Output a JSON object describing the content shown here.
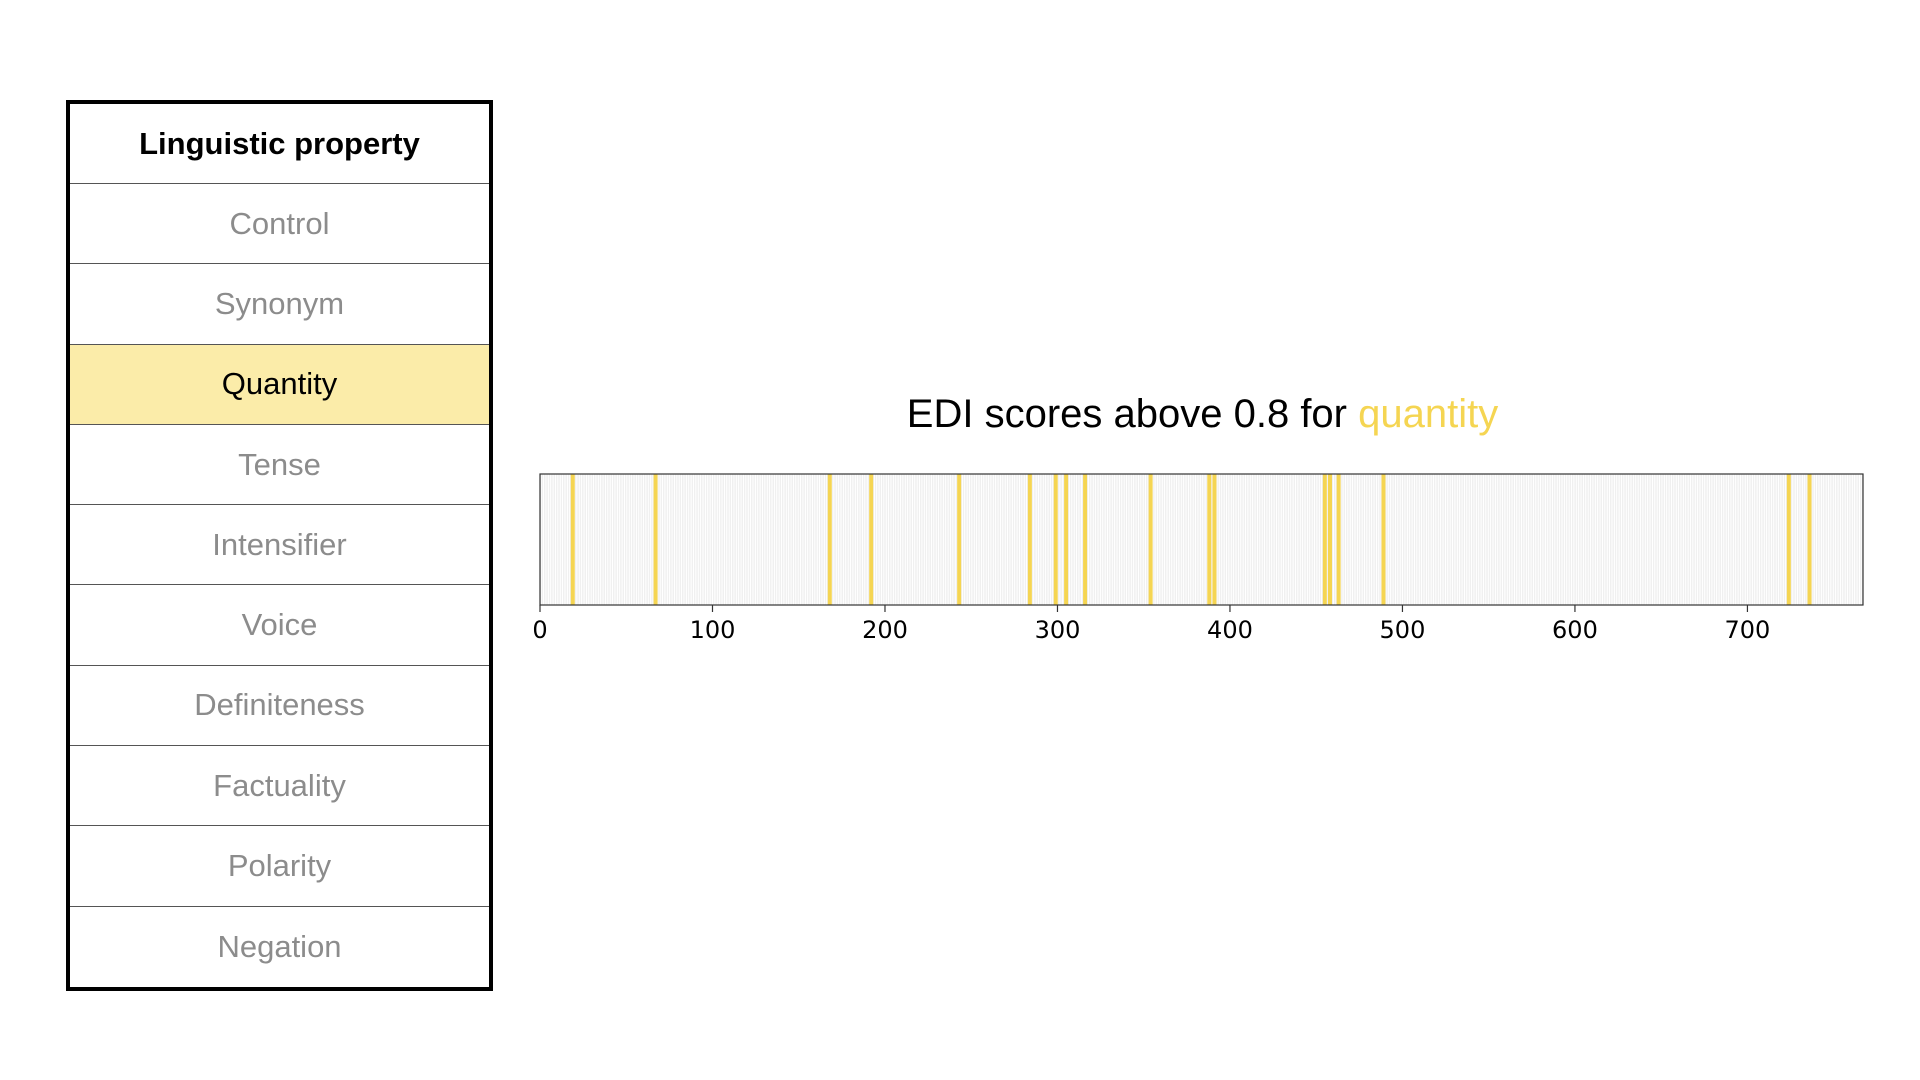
{
  "table": {
    "header": "Linguistic property",
    "rows": [
      {
        "label": "Control",
        "selected": false
      },
      {
        "label": "Synonym",
        "selected": false
      },
      {
        "label": "Quantity",
        "selected": true
      },
      {
        "label": "Tense",
        "selected": false
      },
      {
        "label": "Intensifier",
        "selected": false
      },
      {
        "label": "Voice",
        "selected": false
      },
      {
        "label": "Definiteness",
        "selected": false
      },
      {
        "label": "Factuality",
        "selected": false
      },
      {
        "label": "Polarity",
        "selected": false
      },
      {
        "label": "Negation",
        "selected": false
      }
    ],
    "selected_color": "#fbeca9"
  },
  "chart_data": {
    "type": "bar",
    "title_prefix": "EDI scores above 0.8 for ",
    "title_highlight": "quantity",
    "highlight_color": "#f5d552",
    "background_line_color": "#e6e6e6",
    "xlim": [
      0,
      767
    ],
    "xticks": [
      0,
      100,
      200,
      300,
      400,
      500,
      600,
      700
    ],
    "grid": false,
    "values": [
      19,
      67,
      168,
      192,
      243,
      284,
      299,
      305,
      316,
      354,
      388,
      391,
      455,
      458,
      463,
      489,
      724,
      736
    ]
  }
}
